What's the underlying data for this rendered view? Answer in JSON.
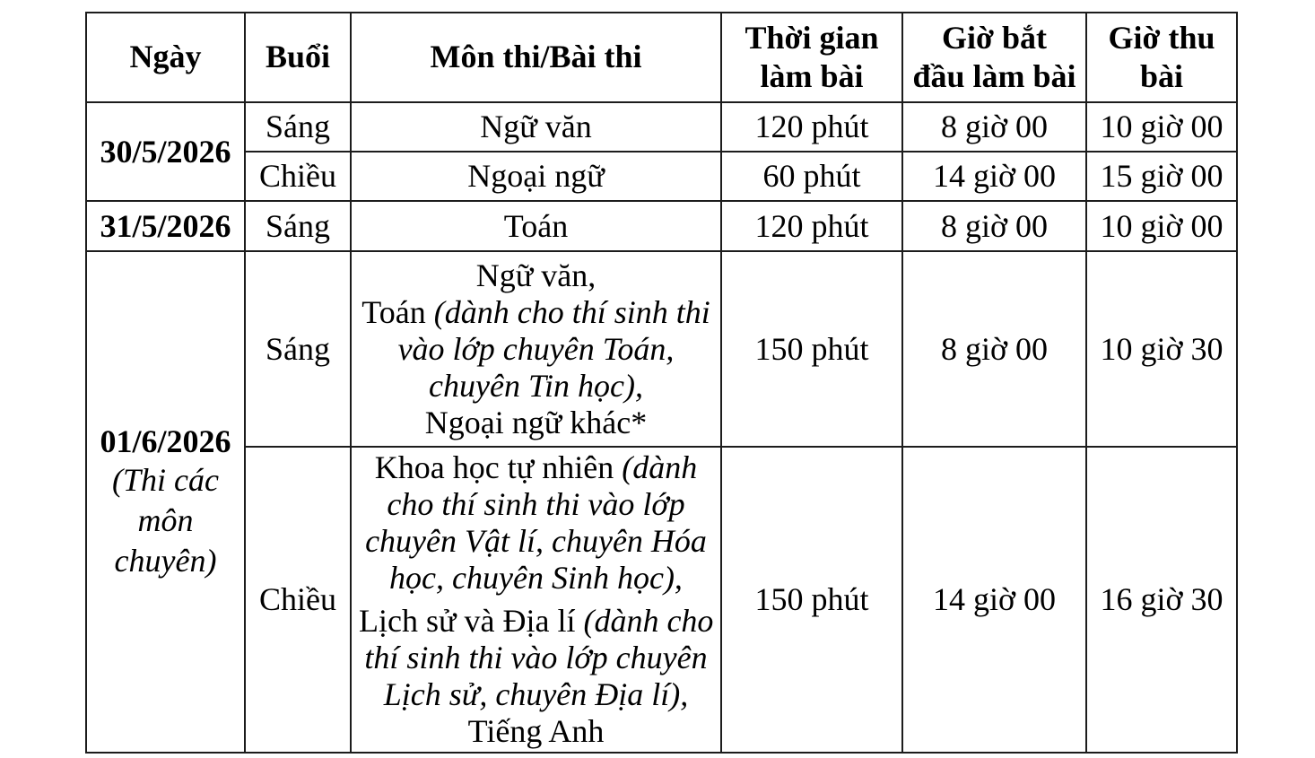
{
  "header": {
    "date": "Ngày",
    "session": "Buổi",
    "subject": "Môn thi/Bài thi",
    "duration": "Thời gian\nlàm bài",
    "start": "Giờ bắt\nđầu làm bài",
    "collect": "Giờ thu\nbài"
  },
  "dates": {
    "d1": "30/5/2026",
    "d2": "31/5/2026",
    "d3": "01/6/2026",
    "d3_note": "(Thi các môn chuyên)"
  },
  "rows": {
    "r1": {
      "session": "Sáng",
      "subject": "Ngữ văn",
      "duration": "120 phút",
      "start": "8 giờ 00",
      "collect": "10 giờ 00"
    },
    "r2": {
      "session": "Chiều",
      "subject": "Ngoại ngữ",
      "duration": "60 phút",
      "start": "14 giờ 00",
      "collect": "15 giờ 00"
    },
    "r3": {
      "session": "Sáng",
      "subject": "Toán",
      "duration": "120 phút",
      "start": "8 giờ 00",
      "collect": "10 giờ 00"
    },
    "r4": {
      "session": "Sáng",
      "duration": "150 phút",
      "start": "8 giờ 00",
      "collect": "10 giờ 30"
    },
    "r5": {
      "session": "Chiều",
      "duration": "150 phút",
      "start": "14 giờ 00",
      "collect": "16 giờ 30"
    }
  },
  "rich": {
    "r4_subject": [
      {
        "seg": [
          {
            "t": "Ngữ văn,",
            "i": false
          }
        ]
      },
      {
        "seg": [
          {
            "t": "Toán ",
            "i": false
          },
          {
            "t": "(dành cho thí sinh thi",
            "i": true
          }
        ]
      },
      {
        "seg": [
          {
            "t": "vào lớp chuyên Toán,",
            "i": true
          }
        ]
      },
      {
        "seg": [
          {
            "t": "chuyên Tin học),",
            "i": true
          }
        ]
      },
      {
        "seg": [
          {
            "t": "Ngoại ngữ khác*",
            "i": false
          }
        ]
      }
    ],
    "r5_subject": [
      {
        "seg": [
          {
            "t": "Khoa học tự nhiên ",
            "i": false
          },
          {
            "t": "(dành",
            "i": true
          }
        ]
      },
      {
        "seg": [
          {
            "t": "cho thí sinh thi vào lớp",
            "i": true
          }
        ]
      },
      {
        "seg": [
          {
            "t": "chuyên Vật lí, chuyên Hóa",
            "i": true
          }
        ]
      },
      {
        "seg": [
          {
            "t": "học, chuyên Sinh học),",
            "i": true
          }
        ]
      },
      {
        "gap": true,
        "seg": [
          {
            "t": "Lịch sử và Địa lí ",
            "i": false
          },
          {
            "t": "(dành cho",
            "i": true
          }
        ]
      },
      {
        "seg": [
          {
            "t": "thí sinh thi vào lớp chuyên",
            "i": true
          }
        ]
      },
      {
        "seg": [
          {
            "t": "Lịch sử, chuyên Địa lí),",
            "i": true
          }
        ]
      },
      {
        "seg": [
          {
            "t": "Tiếng Anh",
            "i": false
          }
        ]
      }
    ]
  },
  "colors": {
    "border": "#1c1c1c",
    "background": "#ffffff",
    "text": "#000000"
  }
}
